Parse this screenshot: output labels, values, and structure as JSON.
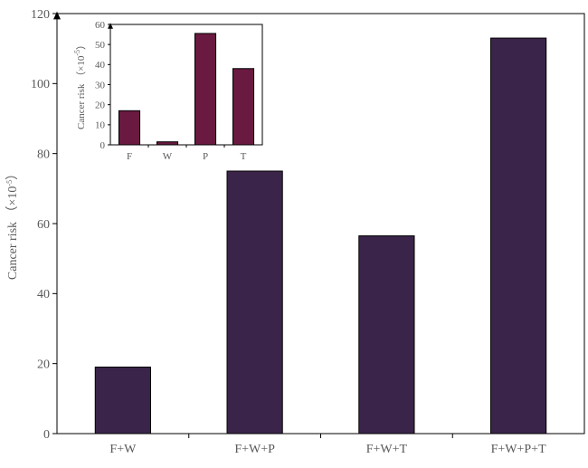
{
  "chart_data": [
    {
      "type": "bar",
      "categories": [
        "F+W",
        "F+W+P",
        "F+W+T",
        "F+W+P+T"
      ],
      "values": [
        19,
        75,
        56.5,
        113
      ],
      "ylabel": "Cancer risk （×10⁻⁵）",
      "ylim": [
        0,
        120
      ],
      "yticks": [
        "0",
        "20",
        "40",
        "60",
        "80",
        "100",
        "120"
      ],
      "grid": false,
      "color": "#3b2449"
    },
    {
      "type": "bar",
      "inset": true,
      "categories": [
        "F",
        "W",
        "P",
        "T"
      ],
      "values": [
        17,
        1.5,
        55.5,
        38
      ],
      "ylabel": "Cancer risk （×10⁻⁵）",
      "ylim": [
        0,
        60
      ],
      "yticks": [
        "0",
        "10",
        "20",
        "30",
        "40",
        "50",
        "60"
      ],
      "grid": false,
      "color": "#6a1940"
    }
  ]
}
